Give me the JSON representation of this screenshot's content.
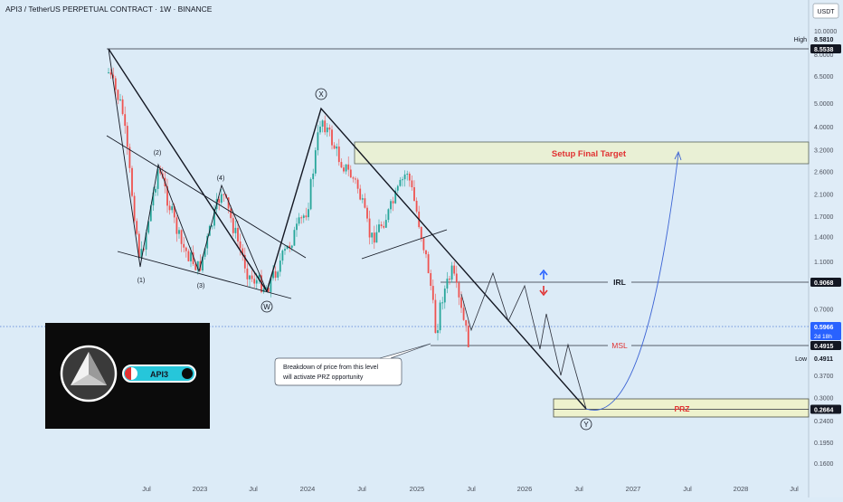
{
  "header": {
    "title": "API3 / TetherUS PERPETUAL CONTRACT · 1W · BINANCE",
    "currency": "USDT"
  },
  "chart_data": {
    "type": "candlestick",
    "scale": "log",
    "ylim": [
      0.14,
      10.0
    ],
    "y_ticks": [
      "10.0000",
      "8.0000",
      "6.5000",
      "5.0000",
      "4.0000",
      "3.2000",
      "2.6000",
      "2.1000",
      "1.7000",
      "1.4000",
      "1.1000",
      "0.9000",
      "0.7000",
      "0.5000",
      "0.3700",
      "0.3000",
      "0.2400",
      "0.1950",
      "0.1600"
    ],
    "x_ticks": [
      "Jul",
      "2023",
      "Jul",
      "2024",
      "Jul",
      "2025",
      "Jul",
      "2026",
      "Jul",
      "2027",
      "Jul",
      "2028",
      "Jul"
    ],
    "price_labels": [
      {
        "name": "High",
        "value": "8.5810"
      },
      {
        "name": "",
        "value": "8.5538"
      },
      {
        "name": "",
        "value": "0.9068"
      },
      {
        "name": "",
        "value": "0.5966",
        "sub": "2d 18h"
      },
      {
        "name": "",
        "value": "0.4915"
      },
      {
        "name": "Low",
        "value": "0.4911"
      },
      {
        "name": "",
        "value": "0.2664"
      }
    ],
    "zones": {
      "target": "Setup Final Target",
      "prz": "PRZ"
    },
    "levels": {
      "irl": "IRL",
      "msl": "MSL"
    },
    "wave_labels": {
      "x": "X",
      "w": "W",
      "y": "Y",
      "w1": "(1)",
      "w2": "(2)",
      "w3": "(3)",
      "w4": "(4)"
    },
    "annotation": "Breakdown of price from this level will activate PRZ opportunity",
    "annotation_lines": [
      "Breakdown of price from this level",
      "will activate PRZ opportunity"
    ],
    "logo_text": "API3"
  }
}
